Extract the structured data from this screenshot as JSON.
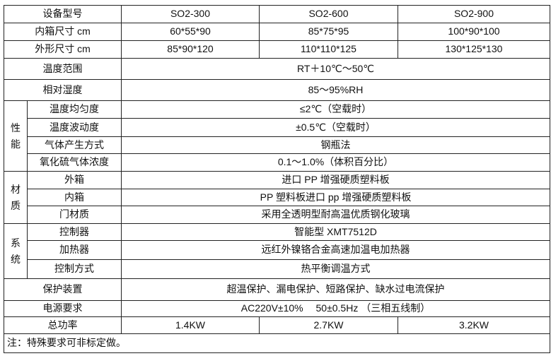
{
  "header": {
    "label": "设备型号",
    "models": [
      "SO2-300",
      "SO2-600",
      "SO2-900"
    ]
  },
  "inner_size": {
    "label": "内箱尺寸 cm",
    "values": [
      "60*55*90",
      "85*75*95",
      "100*90*100"
    ]
  },
  "outer_size": {
    "label": "外形尺寸 cm",
    "values": [
      "85*90*120",
      "110*110*125",
      "130*125*130"
    ]
  },
  "temp_range": {
    "label": "温度范围",
    "value": "RT＋10℃～50℃"
  },
  "humidity": {
    "label": "相对湿度",
    "value": "85～95%RH"
  },
  "performance": {
    "group": "性能",
    "rows": [
      {
        "label": "温度均匀度",
        "value": "≤2℃（空载时）"
      },
      {
        "label": "温度波动度",
        "value": "±0.5℃（空载时）"
      },
      {
        "label": "气体产生方式",
        "value": "钢瓶法"
      },
      {
        "label": "氧化硫气体浓度",
        "value": "0.1～1.0%（体积百分比）"
      }
    ]
  },
  "material": {
    "group": "材质",
    "rows": [
      {
        "label": "外箱",
        "value": "进口 PP 增强硬质塑料板"
      },
      {
        "label": "内箱",
        "value": "PP 塑料板进口 pp 增强硬质塑料板"
      },
      {
        "label": "门材质",
        "value": "采用全透明型耐高温优质钢化玻璃"
      }
    ]
  },
  "system": {
    "group": "系统",
    "rows": [
      {
        "label": "控制器",
        "value": "智能型 XMT7512D"
      },
      {
        "label": "加热器",
        "value": "远红外镍铬合金高速加温电加热器"
      },
      {
        "label": "控制方式",
        "value": "热平衡调温方式"
      }
    ]
  },
  "protection": {
    "label": "保护装置",
    "value": "超温保护、漏电保护、短路保护、缺水过电流保护"
  },
  "power_supply": {
    "label": "电源要求",
    "value": "AC220V±10%　 50±0.5Hz （三相五线制）"
  },
  "total_power": {
    "label": "总功率",
    "values": [
      "1.4KW",
      "2.7KW",
      "3.2KW"
    ]
  },
  "note": "注：特殊要求可非标定做。"
}
